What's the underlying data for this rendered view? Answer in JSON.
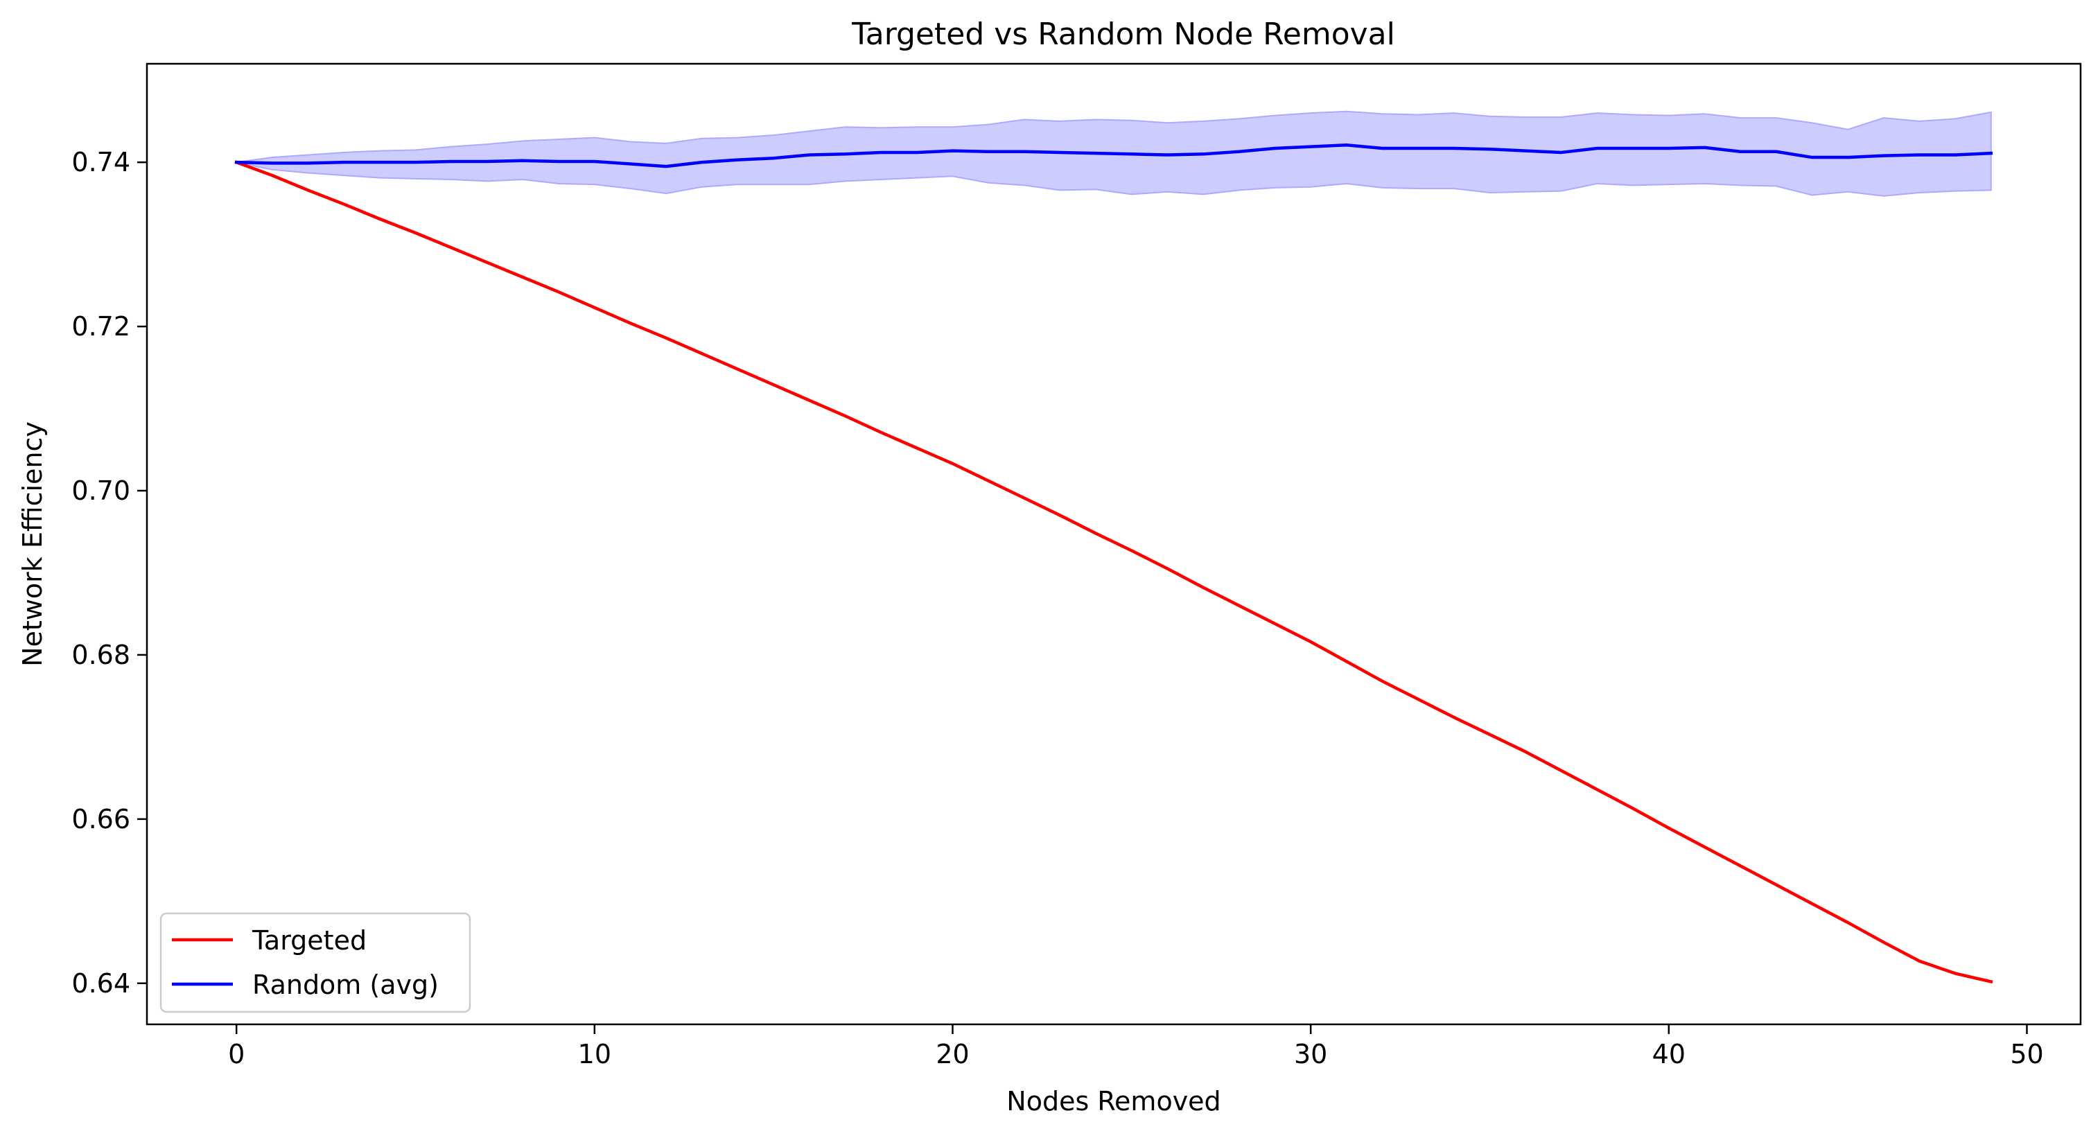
{
  "chart_data": {
    "type": "line",
    "title": "Targeted vs Random Node Removal",
    "xlabel": "Nodes Removed",
    "ylabel": "Network Efficiency",
    "xlim": [
      -2.5,
      51.5
    ],
    "ylim": [
      0.635,
      0.752
    ],
    "xticks": [
      0,
      10,
      20,
      30,
      40,
      50
    ],
    "yticks": [
      0.64,
      0.66,
      0.68,
      0.7,
      0.72,
      0.74
    ],
    "xtick_labels": [
      "0",
      "10",
      "20",
      "30",
      "40",
      "50"
    ],
    "ytick_labels": [
      "0.64",
      "0.66",
      "0.68",
      "0.70",
      "0.72",
      "0.74"
    ],
    "grid": false,
    "legend_position": "lower-left",
    "x": [
      0,
      1,
      2,
      3,
      4,
      5,
      6,
      7,
      8,
      9,
      10,
      11,
      12,
      13,
      14,
      15,
      16,
      17,
      18,
      19,
      20,
      21,
      22,
      23,
      24,
      25,
      26,
      27,
      28,
      29,
      30,
      31,
      32,
      33,
      34,
      35,
      36,
      37,
      38,
      39,
      40,
      41,
      42,
      43,
      44,
      45,
      46,
      47,
      48,
      49
    ],
    "series": [
      {
        "name": "Targeted",
        "color": "#ff0000",
        "values": [
          0.74,
          0.7384,
          0.7366,
          0.7349,
          0.7331,
          0.7314,
          0.7296,
          0.7278,
          0.726,
          0.7242,
          0.7223,
          0.7204,
          0.7186,
          0.7167,
          0.7148,
          0.7129,
          0.711,
          0.7091,
          0.7071,
          0.7052,
          0.7033,
          0.7012,
          0.6991,
          0.697,
          0.6948,
          0.6927,
          0.6905,
          0.6882,
          0.686,
          0.6838,
          0.6816,
          0.6792,
          0.6768,
          0.6746,
          0.6724,
          0.6703,
          0.6682,
          0.6659,
          0.6636,
          0.6613,
          0.6589,
          0.6566,
          0.6543,
          0.652,
          0.6497,
          0.6474,
          0.645,
          0.6427,
          0.6412,
          0.6402
        ]
      },
      {
        "name": "Random (avg)",
        "color": "#0000ff",
        "values": [
          0.74,
          0.7399,
          0.7399,
          0.74,
          0.74,
          0.74,
          0.7401,
          0.7401,
          0.7402,
          0.7401,
          0.7401,
          0.7398,
          0.7395,
          0.74,
          0.7403,
          0.7405,
          0.7409,
          0.741,
          0.7412,
          0.7412,
          0.7414,
          0.7413,
          0.7413,
          0.7412,
          0.7411,
          0.741,
          0.7409,
          0.741,
          0.7413,
          0.7417,
          0.7419,
          0.7421,
          0.7417,
          0.7417,
          0.7417,
          0.7416,
          0.7414,
          0.7412,
          0.7417,
          0.7417,
          0.7417,
          0.7418,
          0.7413,
          0.7413,
          0.7406,
          0.7406,
          0.7408,
          0.7409,
          0.7409,
          0.7411
        ],
        "band_upper": [
          0.74,
          0.7406,
          0.7409,
          0.7412,
          0.7414,
          0.7415,
          0.7419,
          0.7422,
          0.7426,
          0.7428,
          0.743,
          0.7425,
          0.7423,
          0.7429,
          0.743,
          0.7433,
          0.7438,
          0.7443,
          0.7442,
          0.7443,
          0.7443,
          0.7446,
          0.7452,
          0.745,
          0.7452,
          0.7451,
          0.7448,
          0.745,
          0.7453,
          0.7457,
          0.746,
          0.7462,
          0.7459,
          0.7458,
          0.746,
          0.7456,
          0.7455,
          0.7455,
          0.746,
          0.7458,
          0.7457,
          0.7459,
          0.7454,
          0.7454,
          0.7448,
          0.744,
          0.7454,
          0.745,
          0.7453,
          0.7461
        ],
        "band_lower": [
          0.74,
          0.7391,
          0.7387,
          0.7384,
          0.7381,
          0.738,
          0.7379,
          0.7377,
          0.7379,
          0.7374,
          0.7373,
          0.7368,
          0.7362,
          0.737,
          0.7373,
          0.7373,
          0.7373,
          0.7377,
          0.7379,
          0.7381,
          0.7383,
          0.7375,
          0.7372,
          0.7366,
          0.7367,
          0.7361,
          0.7364,
          0.7361,
          0.7366,
          0.7369,
          0.737,
          0.7374,
          0.7369,
          0.7368,
          0.7368,
          0.7363,
          0.7364,
          0.7365,
          0.7374,
          0.7372,
          0.7373,
          0.7374,
          0.7372,
          0.7371,
          0.736,
          0.7364,
          0.7359,
          0.7363,
          0.7365,
          0.7366
        ],
        "band_color": "#ccccff"
      }
    ]
  }
}
